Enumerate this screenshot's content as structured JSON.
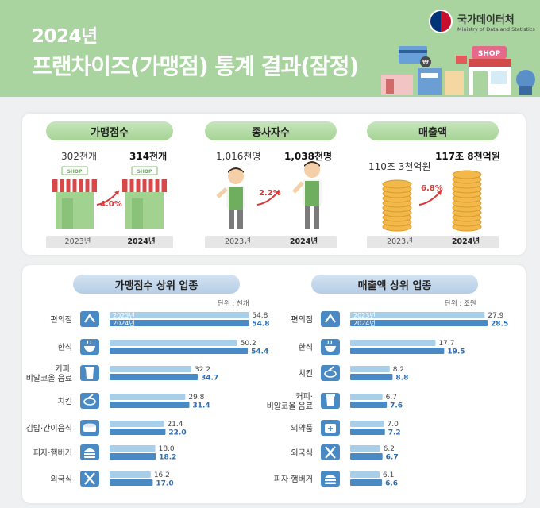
{
  "header": {
    "title_line1": "2024년",
    "title_line2": "프랜차이즈(가맹점) 통계 결과(잠정)",
    "logo_name": "국가데이터처",
    "logo_sub": "Ministry of Data and Statistics",
    "deco_shop_label": "SHOP",
    "deco_card_symbol": "₩"
  },
  "summary": {
    "stores": {
      "label": "가맹점수",
      "v2023": "302천개",
      "v2024": "314천개",
      "change": "4.0%",
      "year1": "2023년",
      "year2": "2024년",
      "shop_sign": "SHOP"
    },
    "workers": {
      "label": "종사자수",
      "v2023": "1,016천명",
      "v2024": "1,038천명",
      "change": "2.2%",
      "year1": "2023년",
      "year2": "2024년"
    },
    "sales": {
      "label": "매출액",
      "v2023": "110조 3천억원",
      "v2024": "117조 8천억원",
      "change": "6.8%",
      "year1": "2023년",
      "year2": "2024년"
    }
  },
  "colors": {
    "bar2023": "#a8cfea",
    "bar2024": "#4a8ac4",
    "value2024": "#2a6db0",
    "header_green": "#a9d4a0"
  },
  "chart_data": [
    {
      "type": "bar",
      "orientation": "horizontal",
      "title": "가맹점수 상위 업종",
      "unit": "단위 : 천개",
      "categories": [
        "편의점",
        "한식",
        "커피·\n비알코올 음료",
        "치킨",
        "김밥·간이음식",
        "피자·햄버거",
        "외국식"
      ],
      "icons": [
        "convenience-store-icon",
        "rice-bowl-icon",
        "coffee-cup-icon",
        "fried-chicken-icon",
        "gimbap-icon",
        "burger-icon",
        "fork-knife-icon"
      ],
      "series": [
        {
          "name": "2023년",
          "values": [
            54.8,
            50.2,
            32.2,
            29.8,
            21.4,
            18.0,
            16.2
          ]
        },
        {
          "name": "2024년",
          "values": [
            54.8,
            54.4,
            34.7,
            31.4,
            22.0,
            18.2,
            17.0
          ]
        }
      ],
      "labels2023": [
        "54.8",
        "50.2",
        "32.2",
        "29.8",
        "21.4",
        "18.0",
        "16.2"
      ],
      "labels2024": [
        "54.8",
        "54.4",
        "34.7",
        "31.4",
        "22.0",
        "18.2",
        "17.0"
      ],
      "xlim": [
        0,
        55
      ]
    },
    {
      "type": "bar",
      "orientation": "horizontal",
      "title": "매출액 상위 업종",
      "unit": "단위 : 조원",
      "categories": [
        "편의점",
        "한식",
        "치킨",
        "커피·\n비알코올 음료",
        "의약품",
        "외국식",
        "피자·햄버거"
      ],
      "icons": [
        "convenience-store-icon",
        "rice-bowl-icon",
        "fried-chicken-icon",
        "coffee-cup-icon",
        "medicine-icon",
        "fork-knife-icon",
        "burger-icon"
      ],
      "series": [
        {
          "name": "2023년",
          "values": [
            27.9,
            17.7,
            8.2,
            6.7,
            7.0,
            6.2,
            6.1
          ]
        },
        {
          "name": "2024년",
          "values": [
            28.5,
            19.5,
            8.8,
            7.6,
            7.2,
            6.7,
            6.6
          ]
        }
      ],
      "labels2023": [
        "27.9",
        "17.7",
        "8.2",
        "6.7",
        "7.0",
        "6.2",
        "6.1"
      ],
      "labels2024": [
        "28.5",
        "19.5",
        "8.8",
        "7.6",
        "7.2",
        "6.7",
        "6.6"
      ],
      "xlim": [
        0,
        28.5
      ]
    }
  ]
}
